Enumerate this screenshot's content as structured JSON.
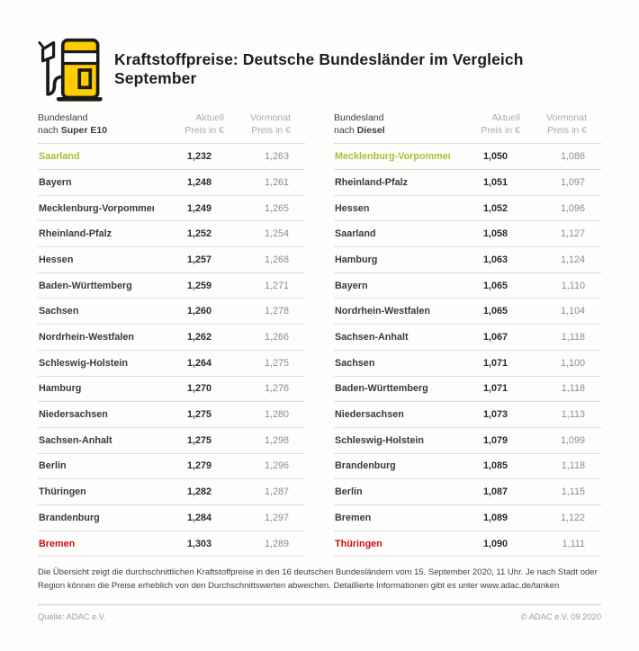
{
  "title": "Kraftstoffpreise: Deutsche Bundesländer im Vergleich September",
  "colors": {
    "brand_yellow": "#FFCC00",
    "outline_black": "#1a1a1a",
    "lowest_green": "#a2c437",
    "highest_red": "#cc0f0f"
  },
  "column_headers": {
    "state_line1": "Bundesland",
    "state_prefix": "nach",
    "current_line1": "Aktuell",
    "current_line2": "Preis in €",
    "previous_line1": "Vormonat",
    "previous_line2": "Preis in €"
  },
  "tables": [
    {
      "fuel": "Super E10",
      "rows": [
        {
          "state": "Saarland",
          "current": "1,232",
          "previous": "1,263",
          "highlight": "lowest"
        },
        {
          "state": "Bayern",
          "current": "1,248",
          "previous": "1,261",
          "highlight": ""
        },
        {
          "state": "Mecklenburg-Vorpommern",
          "current": "1,249",
          "previous": "1,265",
          "highlight": ""
        },
        {
          "state": "Rheinland-Pfalz",
          "current": "1,252",
          "previous": "1,254",
          "highlight": ""
        },
        {
          "state": "Hessen",
          "current": "1,257",
          "previous": "1,268",
          "highlight": ""
        },
        {
          "state": "Baden-Württemberg",
          "current": "1,259",
          "previous": "1,271",
          "highlight": ""
        },
        {
          "state": "Sachsen",
          "current": "1,260",
          "previous": "1,278",
          "highlight": ""
        },
        {
          "state": "Nordrhein-Westfalen",
          "current": "1,262",
          "previous": "1,266",
          "highlight": ""
        },
        {
          "state": "Schleswig-Holstein",
          "current": "1,264",
          "previous": "1,275",
          "highlight": ""
        },
        {
          "state": "Hamburg",
          "current": "1,270",
          "previous": "1,276",
          "highlight": ""
        },
        {
          "state": "Niedersachsen",
          "current": "1,275",
          "previous": "1,280",
          "highlight": ""
        },
        {
          "state": "Sachsen-Anhalt",
          "current": "1,275",
          "previous": "1,298",
          "highlight": ""
        },
        {
          "state": "Berlin",
          "current": "1,279",
          "previous": "1,296",
          "highlight": ""
        },
        {
          "state": "Thüringen",
          "current": "1,282",
          "previous": "1,287",
          "highlight": ""
        },
        {
          "state": "Brandenburg",
          "current": "1,284",
          "previous": "1,297",
          "highlight": ""
        },
        {
          "state": "Bremen",
          "current": "1,303",
          "previous": "1,289",
          "highlight": "highest"
        }
      ]
    },
    {
      "fuel": "Diesel",
      "rows": [
        {
          "state": "Mecklenburg-Vorpommern",
          "current": "1,050",
          "previous": "1,086",
          "highlight": "lowest"
        },
        {
          "state": "Rheinland-Pfalz",
          "current": "1,051",
          "previous": "1,097",
          "highlight": ""
        },
        {
          "state": "Hessen",
          "current": "1,052",
          "previous": "1,096",
          "highlight": ""
        },
        {
          "state": "Saarland",
          "current": "1,058",
          "previous": "1,127",
          "highlight": ""
        },
        {
          "state": "Hamburg",
          "current": "1,063",
          "previous": "1,124",
          "highlight": ""
        },
        {
          "state": "Bayern",
          "current": "1,065",
          "previous": "1,110",
          "highlight": ""
        },
        {
          "state": "Nordrhein-Westfalen",
          "current": "1,065",
          "previous": "1,104",
          "highlight": ""
        },
        {
          "state": "Sachsen-Anhalt",
          "current": "1,067",
          "previous": "1,118",
          "highlight": ""
        },
        {
          "state": "Sachsen",
          "current": "1,071",
          "previous": "1,100",
          "highlight": ""
        },
        {
          "state": "Baden-Württemberg",
          "current": "1,071",
          "previous": "1,118",
          "highlight": ""
        },
        {
          "state": "Niedersachsen",
          "current": "1,073",
          "previous": "1,113",
          "highlight": ""
        },
        {
          "state": "Schleswig-Holstein",
          "current": "1,079",
          "previous": "1,099",
          "highlight": ""
        },
        {
          "state": "Brandenburg",
          "current": "1,085",
          "previous": "1,118",
          "highlight": ""
        },
        {
          "state": "Berlin",
          "current": "1,087",
          "previous": "1,115",
          "highlight": ""
        },
        {
          "state": "Bremen",
          "current": "1,089",
          "previous": "1,122",
          "highlight": ""
        },
        {
          "state": "Thüringen",
          "current": "1,090",
          "previous": "1,111",
          "highlight": "highest"
        }
      ]
    }
  ],
  "disclaimer": "Die Übersicht zeigt die durchschnittlichen Kraftstoffpreise in den 16 deutschen Bundesländern vom 15. September 2020, 11 Uhr.  Je nach Stadt oder Region können die Preise erheblich von den Durchschnittswerten abweichen. Detaillierte Informationen gibt es unter www.adac.de/tanken",
  "footer": {
    "source": "Quelle: ADAC e.V.",
    "copyright": "© ADAC e.V. 09.2020"
  },
  "chart_data": {
    "type": "table",
    "title": "Kraftstoffpreise: Deutsche Bundesländer im Vergleich September",
    "tables": [
      {
        "title": "Super E10",
        "columns": [
          "Bundesland",
          "Aktuell Preis in €",
          "Vormonat Preis in €"
        ],
        "rows": [
          [
            "Saarland",
            1.232,
            1.263
          ],
          [
            "Bayern",
            1.248,
            1.261
          ],
          [
            "Mecklenburg-Vorpommern",
            1.249,
            1.265
          ],
          [
            "Rheinland-Pfalz",
            1.252,
            1.254
          ],
          [
            "Hessen",
            1.257,
            1.268
          ],
          [
            "Baden-Württemberg",
            1.259,
            1.271
          ],
          [
            "Sachsen",
            1.26,
            1.278
          ],
          [
            "Nordrhein-Westfalen",
            1.262,
            1.266
          ],
          [
            "Schleswig-Holstein",
            1.264,
            1.275
          ],
          [
            "Hamburg",
            1.27,
            1.276
          ],
          [
            "Niedersachsen",
            1.275,
            1.28
          ],
          [
            "Sachsen-Anhalt",
            1.275,
            1.298
          ],
          [
            "Berlin",
            1.279,
            1.296
          ],
          [
            "Thüringen",
            1.282,
            1.287
          ],
          [
            "Brandenburg",
            1.284,
            1.297
          ],
          [
            "Bremen",
            1.303,
            1.289
          ]
        ],
        "lowest": "Saarland",
        "highest": "Bremen"
      },
      {
        "title": "Diesel",
        "columns": [
          "Bundesland",
          "Aktuell Preis in €",
          "Vormonat Preis in €"
        ],
        "rows": [
          [
            "Mecklenburg-Vorpommern",
            1.05,
            1.086
          ],
          [
            "Rheinland-Pfalz",
            1.051,
            1.097
          ],
          [
            "Hessen",
            1.052,
            1.096
          ],
          [
            "Saarland",
            1.058,
            1.127
          ],
          [
            "Hamburg",
            1.063,
            1.124
          ],
          [
            "Bayern",
            1.065,
            1.11
          ],
          [
            "Nordrhein-Westfalen",
            1.065,
            1.104
          ],
          [
            "Sachsen-Anhalt",
            1.067,
            1.118
          ],
          [
            "Sachsen",
            1.071,
            1.1
          ],
          [
            "Baden-Württemberg",
            1.071,
            1.118
          ],
          [
            "Niedersachsen",
            1.073,
            1.113
          ],
          [
            "Schleswig-Holstein",
            1.079,
            1.099
          ],
          [
            "Brandenburg",
            1.085,
            1.118
          ],
          [
            "Berlin",
            1.087,
            1.115
          ],
          [
            "Bremen",
            1.089,
            1.122
          ],
          [
            "Thüringen",
            1.09,
            1.111
          ]
        ],
        "lowest": "Mecklenburg-Vorpommern",
        "highest": "Thüringen"
      }
    ]
  }
}
